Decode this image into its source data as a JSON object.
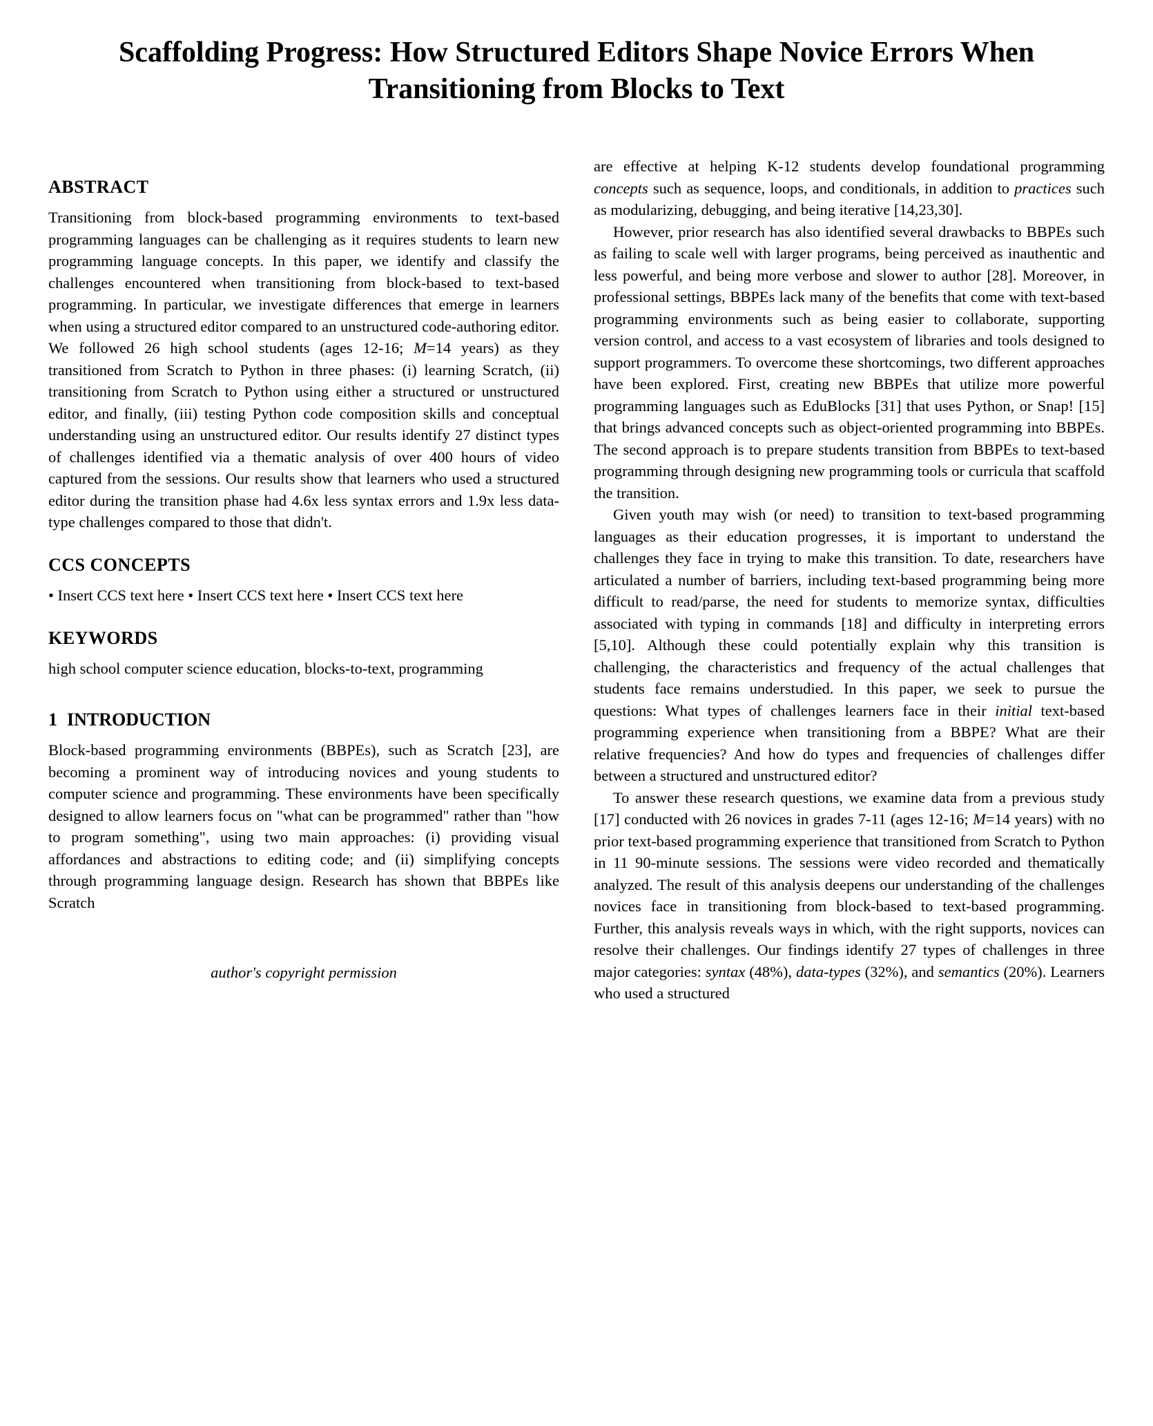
{
  "title": "Scaffolding Progress: How Structured Editors Shape Novice Errors When Transitioning from Blocks to Text",
  "sections": {
    "abstract_heading": "ABSTRACT",
    "ccs_heading": "CCS CONCEPTS",
    "keywords_heading": "KEYWORDS",
    "intro_num": "1",
    "intro_heading": "INTRODUCTION"
  },
  "abstract_text": "Transitioning from block-based programming environments to text-based programming languages can be challenging as it requires students to learn new programming language concepts. In this paper, we identify and classify the challenges encountered when transitioning from block-based to text-based programming. In particular, we investigate differences that emerge in learners when using a structured editor compared to an unstructured code-authoring editor. We followed 26 high school students (ages 12-16; ",
  "abstract_m": "M",
  "abstract_tail": "=14 years) as they transitioned from Scratch to Python in three phases: (i) learning Scratch, (ii) transitioning from Scratch to Python using either a structured or unstructured editor, and finally, (iii) testing Python code composition skills and conceptual understanding using an unstructured editor. Our results identify 27 distinct types of challenges identified via a thematic analysis of over 400 hours of video captured from the sessions. Our results show that learners who used a structured editor during the transition phase had 4.6x less syntax errors and 1.9x less data-type challenges compared to those that didn't.",
  "ccs_text": "• Insert CCS text here • Insert CCS text here  • Insert CCS text here",
  "keywords_text": "high school computer science education, blocks-to-text, programming",
  "intro_p1_a": "Block-based programming environments (BBPEs), such as Scratch [23], are becoming a prominent way of introducing novices and young students to computer science and programming. These environments have been specifically designed to allow learners focus on \"what can be programmed\" rather than \"how to program something\", using two main approaches: (i) providing visual affordances and abstractions to editing code; and (ii) simplifying concepts through programming language design. Research has shown that BBPEs like Scratch",
  "copyright": "author's copyright permission",
  "col2_p1_a": "are effective at helping K-12 students develop foundational programming ",
  "col2_p1_concepts": "concepts",
  "col2_p1_b": " such as sequence, loops, and conditionals, in addition to ",
  "col2_p1_practices": "practices",
  "col2_p1_c": " such as modularizing, debugging, and being iterative [14,23,30].",
  "col2_p2": "However, prior research has also identified several drawbacks to BBPEs such as failing to scale well with larger programs, being perceived as inauthentic and less powerful, and being more verbose and slower to author [28]. Moreover, in professional settings, BBPEs lack many of the benefits that come with text-based programming environments such as being easier to collaborate, supporting version control, and access to a vast ecosystem of libraries and tools designed to support programmers. To overcome these shortcomings, two different approaches have been explored. First, creating new BBPEs that utilize more powerful programming languages such as EduBlocks [31] that uses Python, or Snap! [15] that brings advanced concepts such as object-oriented programming into BBPEs. The second approach is to prepare students transition from BBPEs to text-based programming through designing new programming tools or curricula that scaffold the transition.",
  "col2_p3_a": "Given youth may wish (or need) to transition to text-based programming languages as their education progresses, it is important to understand the challenges they face in trying to make this transition. To date, researchers have articulated a number of barriers, including text-based programming being more difficult to read/parse, the need for students to memorize syntax, difficulties associated with typing in commands [18] and difficulty in interpreting errors [5,10]. Although these could potentially explain why this transition is challenging, the characteristics and frequency of the actual challenges that students face remains understudied. In this paper, we seek to pursue the questions: What types of challenges learners face in their ",
  "col2_p3_initial": "initial",
  "col2_p3_b": " text-based programming experience when transitioning from a BBPE? What are their relative frequencies? And how do types and frequencies of challenges differ between a structured and unstructured editor?",
  "col2_p4_a": "To answer these research questions, we examine data from a previous study [17] conducted with 26 novices in grades 7-11 (ages 12-16; ",
  "col2_p4_m": "M",
  "col2_p4_b": "=14 years) with no prior text-based programming experience that transitioned from Scratch to Python in 11 90-minute sessions. The sessions were video recorded and thematically analyzed. The result of this analysis deepens our understanding of the challenges novices face in transitioning from block-based to text-based programming. Further, this analysis reveals ways in which, with the right supports, novices can resolve their challenges. Our findings identify 27 types of challenges in three major categories: ",
  "col2_p4_syntax": "syntax",
  "col2_p4_c": " (48%), ",
  "col2_p4_datatypes": "data-types",
  "col2_p4_d": " (32%), and ",
  "col2_p4_semantics": "semantics",
  "col2_p4_e": " (20%). Learners who used a structured"
}
